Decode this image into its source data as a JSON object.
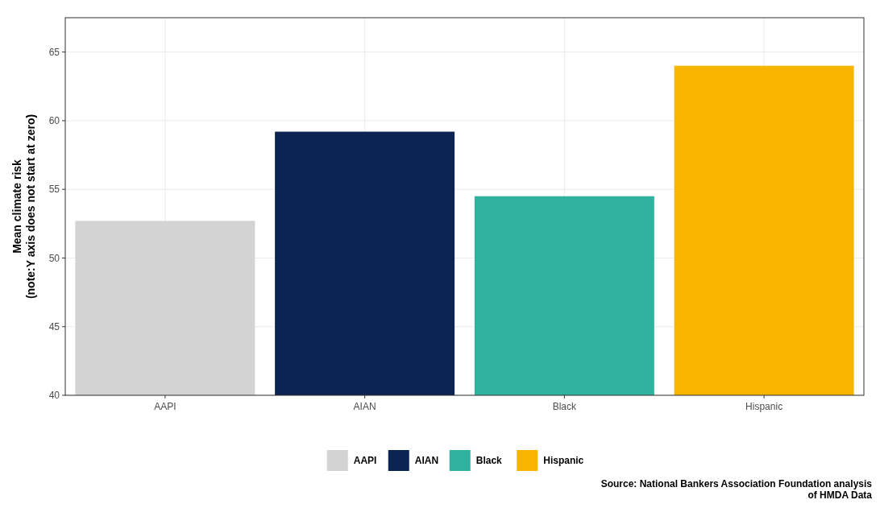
{
  "chart_data": {
    "type": "bar",
    "ylabel": "Mean climate risk\n(note:Y axis does not start at zero)",
    "categories": [
      "AAPI",
      "AIAN",
      "Black",
      "Hispanic"
    ],
    "series": [
      {
        "name": "AAPI",
        "color": "#d3d3d3",
        "values": [
          52.7,
          null,
          null,
          null
        ]
      },
      {
        "name": "AIAN",
        "color": "#0c2451",
        "values": [
          null,
          59.2,
          null,
          null
        ]
      },
      {
        "name": "Black",
        "color": "#2fb3a0",
        "values": [
          null,
          null,
          54.5,
          null
        ]
      },
      {
        "name": "Hispanic",
        "color": "#f7b500",
        "values": [
          null,
          null,
          null,
          64.0
        ]
      }
    ],
    "stacked": true,
    "ylim": [
      40,
      67.5
    ],
    "yticks": [
      40,
      45,
      50,
      55,
      60,
      65
    ],
    "grid": true,
    "legend": "bottom",
    "annotations": [
      "Source: National Bankers Association Foundation analysis\nof HMDA Data"
    ]
  }
}
